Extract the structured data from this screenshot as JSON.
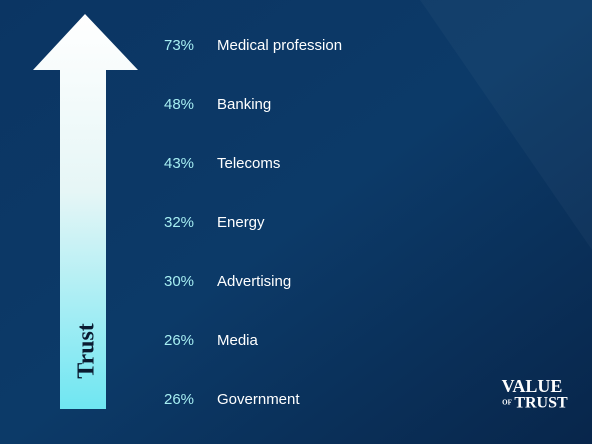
{
  "arrow_label": "Trust",
  "items": [
    {
      "percent": "73%",
      "label": "Medical profession"
    },
    {
      "percent": "48%",
      "label": "Banking"
    },
    {
      "percent": "43%",
      "label": "Telecoms"
    },
    {
      "percent": "32%",
      "label": "Energy"
    },
    {
      "percent": "30%",
      "label": "Advertising"
    },
    {
      "percent": "26%",
      "label": "Media"
    },
    {
      "percent": "26%",
      "label": "Government"
    }
  ],
  "logo": {
    "top": "VALUE",
    "of": "OF",
    "bottom": "TRUST"
  }
}
